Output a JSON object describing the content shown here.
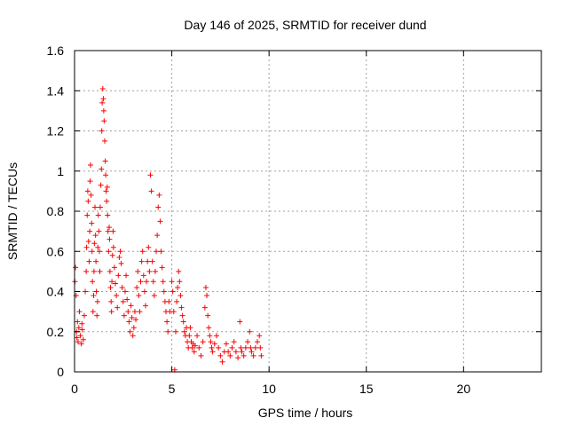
{
  "chart_data": {
    "type": "scatter",
    "title": "Day 146 of 2025, SRMTID for receiver dund",
    "xlabel": "GPS time / hours",
    "ylabel": "SRMTID / TECUs",
    "xlim": [
      0,
      24
    ],
    "ylim": [
      0,
      1.6
    ],
    "x_ticks": [
      0,
      5,
      10,
      15,
      20
    ],
    "x_tick_labels": [
      "0",
      "5",
      "10",
      "15",
      "20"
    ],
    "y_ticks": [
      0,
      0.2,
      0.4,
      0.6,
      0.8,
      1.0,
      1.2,
      1.4,
      1.6
    ],
    "y_tick_labels": [
      "0",
      "0.2",
      "0.4",
      "0.6",
      "0.8",
      "1",
      "1.2",
      "1.4",
      "1.6"
    ],
    "grid": true,
    "marker": "plus",
    "colors": {
      "series": "#ff0000",
      "grid": "#a0a0a0",
      "axis": "#000000"
    },
    "series": [
      {
        "name": "SRMTID",
        "points": [
          [
            0.02,
            0.45
          ],
          [
            0.05,
            0.52
          ],
          [
            0.08,
            0.38
          ],
          [
            0.1,
            0.2
          ],
          [
            0.12,
            0.17
          ],
          [
            0.15,
            0.25
          ],
          [
            0.18,
            0.15
          ],
          [
            0.22,
            0.22
          ],
          [
            0.25,
            0.3
          ],
          [
            0.3,
            0.18
          ],
          [
            0.35,
            0.14
          ],
          [
            0.38,
            0.24
          ],
          [
            0.4,
            0.21
          ],
          [
            0.45,
            0.16
          ],
          [
            0.5,
            0.28
          ],
          [
            0.55,
            0.4
          ],
          [
            0.6,
            0.5
          ],
          [
            0.62,
            0.62
          ],
          [
            0.65,
            0.78
          ],
          [
            0.68,
            0.9
          ],
          [
            0.7,
            0.85
          ],
          [
            0.72,
            0.65
          ],
          [
            0.75,
            0.55
          ],
          [
            0.78,
            0.7
          ],
          [
            0.8,
            0.95
          ],
          [
            0.82,
            1.03
          ],
          [
            0.85,
            0.88
          ],
          [
            0.88,
            0.74
          ],
          [
            0.9,
            0.6
          ],
          [
            0.92,
            0.45
          ],
          [
            0.95,
            0.3
          ],
          [
            0.98,
            0.38
          ],
          [
            1.0,
            0.5
          ],
          [
            1.02,
            0.64
          ],
          [
            1.05,
            0.82
          ],
          [
            1.08,
            0.68
          ],
          [
            1.1,
            0.55
          ],
          [
            1.12,
            0.4
          ],
          [
            1.15,
            0.28
          ],
          [
            1.18,
            0.35
          ],
          [
            1.2,
            0.62
          ],
          [
            1.22,
            0.78
          ],
          [
            1.25,
            0.7
          ],
          [
            1.28,
            0.6
          ],
          [
            1.3,
            0.5
          ],
          [
            1.32,
            0.82
          ],
          [
            1.35,
            0.93
          ],
          [
            1.38,
            1.01
          ],
          [
            1.4,
            1.2
          ],
          [
            1.42,
            1.34
          ],
          [
            1.45,
            1.41
          ],
          [
            1.48,
            1.36
          ],
          [
            1.5,
            1.3
          ],
          [
            1.52,
            1.25
          ],
          [
            1.55,
            1.15
          ],
          [
            1.58,
            1.05
          ],
          [
            1.6,
            0.98
          ],
          [
            1.62,
            0.9
          ],
          [
            1.65,
            0.85
          ],
          [
            1.68,
            0.92
          ],
          [
            1.7,
            0.78
          ],
          [
            1.72,
            0.7
          ],
          [
            1.75,
            0.6
          ],
          [
            1.78,
            0.72
          ],
          [
            1.8,
            0.66
          ],
          [
            1.82,
            0.5
          ],
          [
            1.85,
            0.42
          ],
          [
            1.88,
            0.35
          ],
          [
            1.9,
            0.3
          ],
          [
            1.92,
            0.45
          ],
          [
            1.95,
            0.58
          ],
          [
            1.98,
            0.7
          ],
          [
            2.0,
            0.62
          ],
          [
            2.05,
            0.52
          ],
          [
            2.1,
            0.44
          ],
          [
            2.15,
            0.38
          ],
          [
            2.2,
            0.32
          ],
          [
            2.25,
            0.48
          ],
          [
            2.3,
            0.57
          ],
          [
            2.35,
            0.6
          ],
          [
            2.4,
            0.54
          ],
          [
            2.45,
            0.42
          ],
          [
            2.5,
            0.35
          ],
          [
            2.55,
            0.28
          ],
          [
            2.6,
            0.4
          ],
          [
            2.65,
            0.48
          ],
          [
            2.7,
            0.36
          ],
          [
            2.75,
            0.3
          ],
          [
            2.8,
            0.25
          ],
          [
            2.85,
            0.2
          ],
          [
            2.9,
            0.33
          ],
          [
            2.95,
            0.27
          ],
          [
            3.0,
            0.18
          ],
          [
            3.05,
            0.22
          ],
          [
            3.1,
            0.3
          ],
          [
            3.15,
            0.26
          ],
          [
            3.2,
            0.42
          ],
          [
            3.25,
            0.5
          ],
          [
            3.3,
            0.38
          ],
          [
            3.35,
            0.3
          ],
          [
            3.4,
            0.45
          ],
          [
            3.45,
            0.55
          ],
          [
            3.5,
            0.6
          ],
          [
            3.55,
            0.48
          ],
          [
            3.6,
            0.4
          ],
          [
            3.65,
            0.33
          ],
          [
            3.7,
            0.45
          ],
          [
            3.75,
            0.55
          ],
          [
            3.8,
            0.62
          ],
          [
            3.85,
            0.5
          ],
          [
            3.9,
            0.98
          ],
          [
            3.95,
            0.9
          ],
          [
            4.0,
            0.55
          ],
          [
            4.05,
            0.45
          ],
          [
            4.1,
            0.38
          ],
          [
            4.15,
            0.5
          ],
          [
            4.2,
            0.6
          ],
          [
            4.25,
            0.68
          ],
          [
            4.3,
            0.82
          ],
          [
            4.35,
            0.88
          ],
          [
            4.4,
            0.75
          ],
          [
            4.45,
            0.6
          ],
          [
            4.5,
            0.52
          ],
          [
            4.55,
            0.45
          ],
          [
            4.6,
            0.4
          ],
          [
            4.65,
            0.35
          ],
          [
            4.7,
            0.3
          ],
          [
            4.75,
            0.25
          ],
          [
            4.8,
            0.2
          ],
          [
            4.85,
            0.35
          ],
          [
            4.9,
            0.3
          ],
          [
            5.0,
            0.45
          ],
          [
            5.05,
            0.4
          ],
          [
            5.1,
            0.3
          ],
          [
            5.15,
            0.01
          ],
          [
            5.2,
            0.2
          ],
          [
            5.25,
            0.35
          ],
          [
            5.3,
            0.42
          ],
          [
            5.35,
            0.5
          ],
          [
            5.4,
            0.45
          ],
          [
            5.45,
            0.38
          ],
          [
            5.5,
            0.32
          ],
          [
            5.55,
            0.28
          ],
          [
            5.6,
            0.25
          ],
          [
            5.65,
            0.2
          ],
          [
            5.7,
            0.18
          ],
          [
            5.75,
            0.22
          ],
          [
            5.8,
            0.15
          ],
          [
            5.85,
            0.12
          ],
          [
            5.9,
            0.18
          ],
          [
            5.95,
            0.22
          ],
          [
            6.0,
            0.15
          ],
          [
            6.05,
            0.12
          ],
          [
            6.1,
            0.14
          ],
          [
            6.15,
            0.1
          ],
          [
            6.2,
            0.13
          ],
          [
            6.3,
            0.18
          ],
          [
            6.4,
            0.12
          ],
          [
            6.5,
            0.08
          ],
          [
            6.6,
            0.15
          ],
          [
            6.7,
            0.32
          ],
          [
            6.75,
            0.42
          ],
          [
            6.8,
            0.38
          ],
          [
            6.85,
            0.28
          ],
          [
            6.9,
            0.22
          ],
          [
            6.95,
            0.18
          ],
          [
            7.0,
            0.15
          ],
          [
            7.05,
            0.12
          ],
          [
            7.1,
            0.1
          ],
          [
            7.2,
            0.14
          ],
          [
            7.3,
            0.18
          ],
          [
            7.4,
            0.12
          ],
          [
            7.5,
            0.08
          ],
          [
            7.6,
            0.05
          ],
          [
            7.7,
            0.1
          ],
          [
            7.8,
            0.14
          ],
          [
            7.9,
            0.1
          ],
          [
            8.0,
            0.08
          ],
          [
            8.1,
            0.12
          ],
          [
            8.2,
            0.15
          ],
          [
            8.3,
            0.1
          ],
          [
            8.4,
            0.07
          ],
          [
            8.5,
            0.25
          ],
          [
            8.55,
            0.12
          ],
          [
            8.6,
            0.1
          ],
          [
            8.7,
            0.08
          ],
          [
            8.8,
            0.12
          ],
          [
            8.9,
            0.15
          ],
          [
            9.0,
            0.2
          ],
          [
            9.05,
            0.12
          ],
          [
            9.1,
            0.1
          ],
          [
            9.2,
            0.08
          ],
          [
            9.3,
            0.12
          ],
          [
            9.4,
            0.15
          ],
          [
            9.5,
            0.18
          ],
          [
            9.55,
            0.12
          ],
          [
            9.6,
            0.08
          ]
        ]
      }
    ]
  }
}
